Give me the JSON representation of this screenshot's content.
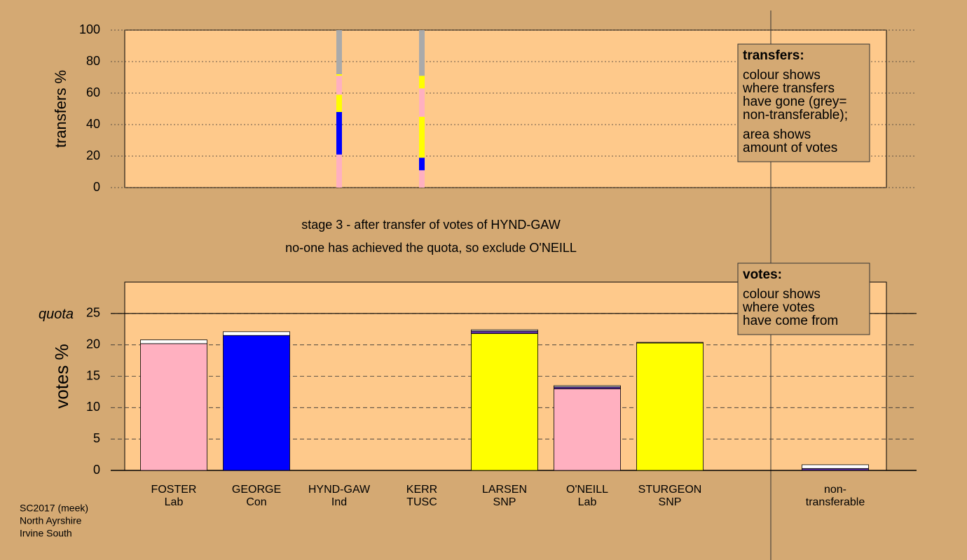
{
  "chart_data": [
    {
      "type": "bar",
      "stacked": true,
      "ylabel": "transfers %",
      "ylim": [
        0,
        100
      ],
      "yticks": [
        0,
        20,
        40,
        60,
        80,
        100
      ],
      "grid": true,
      "series": [
        {
          "color": "#ffb0c0",
          "values": [
            null,
            null,
            21,
            11,
            null,
            null,
            null,
            null,
            null
          ]
        },
        {
          "color": "#0000ff",
          "values": [
            null,
            null,
            27,
            8,
            null,
            null,
            null,
            null,
            null
          ]
        },
        {
          "color": "#ffff00",
          "values": [
            null,
            null,
            11,
            26,
            null,
            null,
            null,
            null,
            null
          ]
        },
        {
          "color": "#ffb0c0",
          "values": [
            null,
            null,
            12,
            18,
            null,
            null,
            null,
            null,
            null
          ]
        },
        {
          "color": "#ffff00",
          "values": [
            null,
            null,
            1,
            8,
            null,
            null,
            null,
            null,
            null
          ]
        },
        {
          "color": "#aaaaaa",
          "values": [
            null,
            null,
            28,
            29,
            null,
            null,
            null,
            null,
            null
          ]
        }
      ],
      "legend": {
        "title": "transfers:",
        "lines": [
          [
            "colour shows",
            "where transfers",
            "have gone (grey=",
            "non-transferable);"
          ],
          [
            "area shows",
            "amount of votes"
          ]
        ]
      }
    },
    {
      "type": "bar",
      "stacked": true,
      "ylabel": "votes %",
      "ylim": [
        0,
        30
      ],
      "yticks": [
        0,
        5,
        10,
        15,
        20,
        25
      ],
      "grid": true,
      "categories": [
        [
          "FOSTER",
          "Lab"
        ],
        [
          "GEORGE",
          "Con"
        ],
        [
          "HYND-GAW",
          "Ind"
        ],
        [
          "KERR",
          "TUSC"
        ],
        [
          "LARSEN",
          "SNP"
        ],
        [
          "O'NEILL",
          "Lab"
        ],
        [
          "STURGEON",
          "SNP"
        ],
        null,
        [
          "non-",
          "transferable"
        ]
      ],
      "quota": {
        "label": "quota",
        "value": 25
      },
      "series": [
        {
          "colors": [
            "#ffb0c0",
            "#0000ff",
            null,
            null,
            "#ffff00",
            "#ffb0c0",
            "#ffff00",
            null,
            null
          ],
          "values": [
            20.2,
            21.5,
            null,
            null,
            21.8,
            13.0,
            20.3,
            null,
            null
          ]
        },
        {
          "color": "#5a2ca0",
          "values": [
            null,
            null,
            null,
            null,
            0.4,
            0.3,
            null,
            null,
            0.3
          ]
        },
        {
          "color": "#ffffff",
          "values": [
            0.6,
            0.6,
            null,
            null,
            0.2,
            0.2,
            0.1,
            null,
            0.6
          ]
        }
      ],
      "legend": {
        "title": "votes:",
        "lines": [
          [
            "colour shows",
            "where votes",
            "have come from"
          ]
        ]
      }
    }
  ],
  "stage_text": [
    "stage 3 - after transfer of votes of HYND-GAW",
    "no-one has achieved the quota, so exclude O'NEILL"
  ],
  "footer": [
    "SC2017 (meek)",
    "North Ayrshire",
    "Irvine South"
  ]
}
